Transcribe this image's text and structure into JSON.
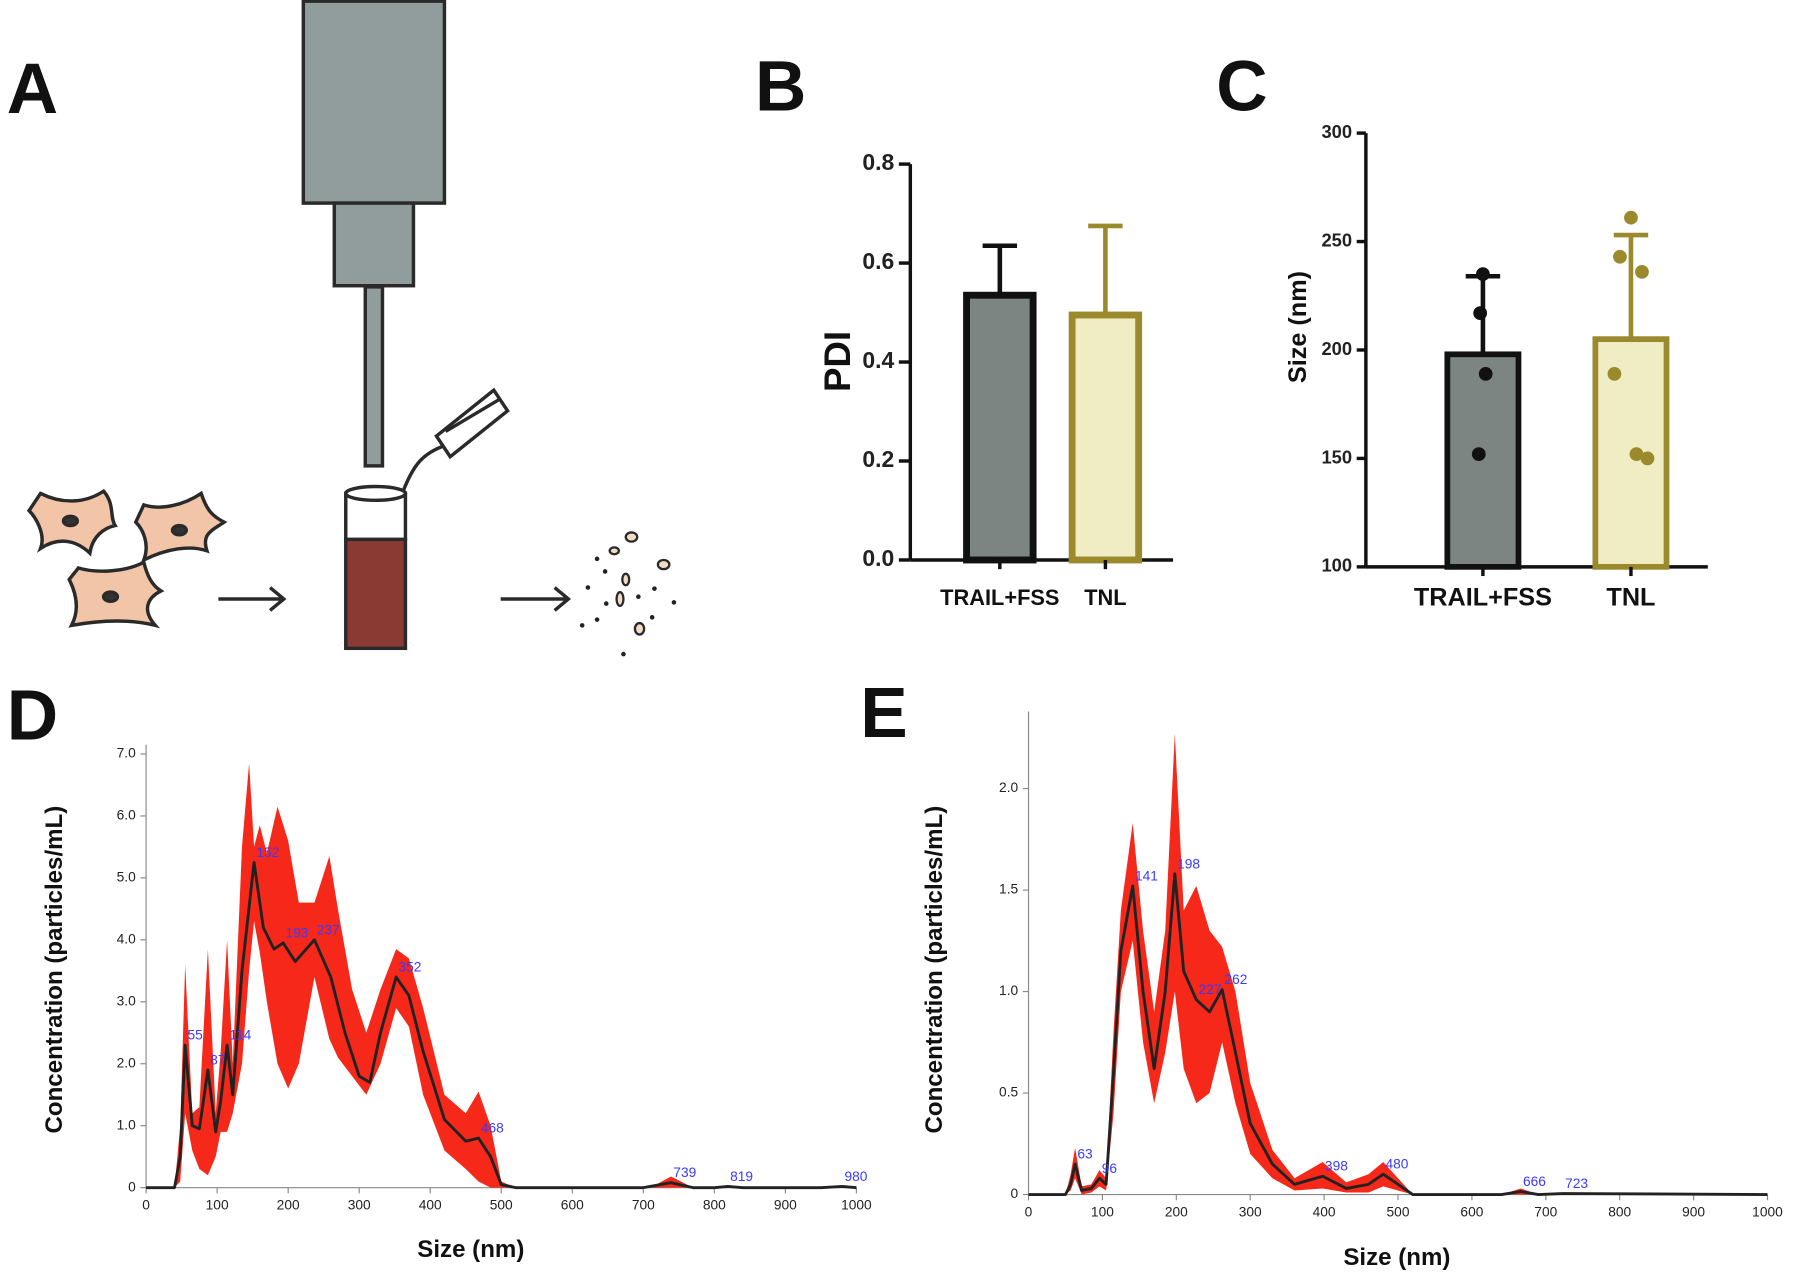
{
  "panel_labels": [
    "A",
    "B",
    "C",
    "D",
    "E"
  ],
  "chart_data": [
    {
      "type": "bar",
      "ylabel": "PDI",
      "categories": [
        "TRAIL+FSS",
        "TNL"
      ],
      "values": [
        0.535,
        0.495
      ],
      "errors": [
        0.1,
        0.18
      ],
      "error_direction": "up",
      "colors": [
        "#7c8581",
        "#f0ecc4"
      ],
      "edge_colors": [
        "#111111",
        "#9b8a2c"
      ],
      "ylim": [
        0,
        0.8
      ],
      "yticks": [
        {
          "value": 0,
          "label": "0.0"
        },
        0.2,
        0.4,
        0.6,
        0.8
      ]
    },
    {
      "type": "bar",
      "ylabel": "Size (nm)",
      "categories": [
        "TRAIL+FSS",
        "TNL"
      ],
      "values": [
        198,
        205
      ],
      "errors": [
        36,
        48
      ],
      "error_direction": "both",
      "colors": [
        "#7c8581",
        "#f0ecc4"
      ],
      "edge_colors": [
        "#111111",
        "#9b8a2c"
      ],
      "points": [
        [
          235,
          217,
          189,
          152
        ],
        [
          261,
          243,
          236,
          189,
          150,
          152
        ]
      ],
      "ylim": [
        100,
        300
      ],
      "yticks": [
        100,
        150,
        200,
        250,
        300
      ]
    },
    {
      "type": "line",
      "xlabel": "Size (nm)",
      "ylabel": "Concentration (particles/mL)",
      "line_color": "#222222",
      "band_color": "#f5281a",
      "peak_color": "#3a3aff",
      "xlim": [
        0,
        1000
      ],
      "xticks": [
        0,
        100,
        200,
        300,
        400,
        500,
        600,
        700,
        800,
        900,
        1000
      ],
      "ylim": [
        0,
        7.15
      ],
      "yticks": [
        0,
        {
          "value": 1,
          "label": "1.0"
        },
        {
          "value": 2,
          "label": "2.0"
        },
        {
          "value": 3,
          "label": "3.0"
        },
        {
          "value": 4,
          "label": "4.0"
        },
        {
          "value": 5,
          "label": "5.0"
        },
        {
          "value": 6,
          "label": "6.0"
        },
        {
          "value": 7,
          "label": "7.0"
        }
      ],
      "mean": {
        "x": [
          0,
          40,
          48,
          55,
          65,
          75,
          87,
          98,
          105,
          114,
          122,
          135,
          152,
          165,
          180,
          193,
          210,
          237,
          260,
          280,
          300,
          315,
          330,
          352,
          370,
          390,
          420,
          450,
          468,
          485,
          500,
          520,
          700,
          739,
          770,
          800,
          819,
          840,
          950,
          980,
          1000
        ],
        "values": [
          0,
          0,
          0.5,
          2.3,
          1.0,
          0.95,
          1.9,
          0.9,
          1.4,
          2.3,
          1.5,
          3.5,
          5.25,
          4.2,
          3.85,
          3.95,
          3.65,
          4.0,
          3.4,
          2.5,
          1.8,
          1.7,
          2.5,
          3.4,
          3.1,
          2.2,
          1.1,
          0.75,
          0.8,
          0.5,
          0.05,
          0,
          0,
          0.08,
          0,
          0,
          0.02,
          0,
          0,
          0.02,
          0
        ]
      },
      "band": {
        "x": [
          0,
          40,
          48,
          55,
          65,
          75,
          87,
          98,
          105,
          114,
          122,
          135,
          145,
          152,
          160,
          170,
          185,
          200,
          215,
          237,
          258,
          270,
          290,
          310,
          330,
          352,
          370,
          390,
          420,
          450,
          468,
          485,
          500,
          520,
          710,
          739,
          770,
          1000
        ],
        "upper": [
          0,
          0,
          1,
          3.6,
          1.2,
          1.3,
          3.85,
          1.2,
          2.2,
          4.0,
          2.0,
          5.5,
          6.85,
          5.5,
          5.85,
          5.4,
          6.15,
          5.6,
          4.6,
          4.6,
          5.35,
          4.5,
          3.2,
          2.5,
          3.2,
          3.85,
          3.7,
          2.9,
          1.5,
          1.2,
          1.55,
          1.0,
          0.1,
          0,
          0,
          0.18,
          0,
          0
        ],
        "lower": [
          0,
          0,
          0.1,
          1.2,
          0.6,
          0.3,
          0.2,
          0.5,
          0.9,
          0.9,
          1.2,
          2.0,
          3.5,
          4.3,
          3.8,
          3.0,
          2.0,
          1.6,
          2.0,
          3.4,
          2.4,
          2.1,
          1.8,
          1.5,
          2.0,
          2.9,
          2.6,
          1.5,
          0.6,
          0.3,
          0.1,
          0,
          0,
          0,
          0,
          0,
          0,
          0
        ]
      },
      "peaks": {
        "x": [
          55,
          87,
          114,
          152,
          193,
          237,
          352,
          468,
          739,
          819,
          980
        ],
        "y": [
          2.3,
          1.9,
          2.3,
          5.25,
          3.95,
          4.0,
          3.4,
          0.8,
          0.08,
          0.02,
          0.02
        ]
      }
    },
    {
      "type": "line",
      "xlabel": "Size (nm)",
      "ylabel": "Concentration (particles/mL)",
      "line_color": "#222222",
      "band_color": "#f5281a",
      "peak_color": "#3a3aff",
      "xlim": [
        0,
        1000
      ],
      "xticks": [
        0,
        100,
        200,
        300,
        400,
        500,
        600,
        700,
        800,
        900,
        1000
      ],
      "ylim": [
        0,
        2.38
      ],
      "yticks": [
        0,
        0.5,
        {
          "value": 1,
          "label": "1.0"
        },
        1.5,
        {
          "value": 2,
          "label": "2.0"
        }
      ],
      "mean": {
        "x": [
          0,
          50,
          57,
          63,
          72,
          85,
          96,
          105,
          115,
          125,
          141,
          155,
          170,
          185,
          198,
          210,
          227,
          245,
          262,
          280,
          300,
          330,
          360,
          398,
          430,
          460,
          480,
          500,
          520,
          640,
          666,
          690,
          723,
          1000
        ],
        "values": [
          0,
          0,
          0.05,
          0.15,
          0.02,
          0.03,
          0.08,
          0.05,
          0.6,
          1.2,
          1.52,
          1.0,
          0.62,
          1.0,
          1.58,
          1.1,
          0.96,
          0.9,
          1.01,
          0.7,
          0.35,
          0.15,
          0.05,
          0.09,
          0.03,
          0.05,
          0.1,
          0.05,
          0,
          0,
          0.015,
          0,
          0.005,
          0
        ]
      },
      "band": {
        "x": [
          0,
          50,
          57,
          63,
          72,
          85,
          96,
          105,
          115,
          125,
          141,
          155,
          170,
          185,
          198,
          210,
          227,
          245,
          262,
          280,
          300,
          330,
          360,
          398,
          430,
          460,
          480,
          500,
          520,
          640,
          666,
          690,
          723,
          1000
        ],
        "upper": [
          0,
          0,
          0.1,
          0.23,
          0.04,
          0.05,
          0.12,
          0.08,
          0.8,
          1.4,
          1.83,
          1.3,
          0.9,
          1.3,
          2.27,
          1.4,
          1.52,
          1.3,
          1.22,
          1.0,
          0.55,
          0.22,
          0.08,
          0.16,
          0.06,
          0.1,
          0.16,
          0.08,
          0,
          0,
          0.03,
          0,
          0.01,
          0
        ],
        "lower": [
          0,
          0,
          0.02,
          0.08,
          0,
          0.01,
          0.04,
          0.02,
          0.4,
          1.0,
          1.25,
          0.75,
          0.45,
          0.7,
          1.0,
          0.62,
          0.45,
          0.5,
          0.75,
          0.45,
          0.2,
          0.08,
          0.02,
          0.03,
          0.01,
          0.01,
          0.04,
          0.02,
          0,
          0,
          0,
          0,
          0,
          0
        ]
      },
      "peaks": {
        "x": [
          63,
          96,
          141,
          198,
          227,
          262,
          398,
          480,
          666,
          723
        ],
        "y": [
          0.15,
          0.08,
          1.52,
          1.58,
          0.96,
          1.01,
          0.09,
          0.1,
          0.015,
          0.005
        ]
      }
    }
  ]
}
